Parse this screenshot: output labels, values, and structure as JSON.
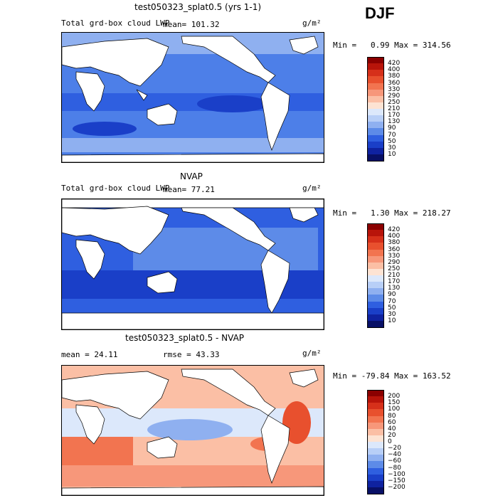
{
  "season": "DJF",
  "panels": [
    {
      "title": "test050323_splat0.5 (yrs 1-1)",
      "left_label": "Total grd-box cloud LWP",
      "mean_text": "mean=  101.32",
      "units": "g/m²",
      "minmax": "Min =   0.99 Max = 314.56",
      "colorbar_labels": [
        "420",
        "400",
        "380",
        "360",
        "330",
        "290",
        "250",
        "210",
        "170",
        "130",
        "90",
        "70",
        "50",
        "30",
        "10"
      ],
      "colorbar_colors": [
        "#8b0000",
        "#b8140a",
        "#d6301a",
        "#e8502e",
        "#f27450",
        "#f7977a",
        "#fbbfa5",
        "#fde3d3",
        "#dce8fb",
        "#b8cff7",
        "#8fb0f0",
        "#5d8be8",
        "#2f5fe0",
        "#1a3fc8",
        "#0f22a0",
        "#081066"
      ]
    },
    {
      "title": "NVAP",
      "left_label": "Total grd-box cloud LWP",
      "mean_text": "mean=   77.21",
      "units": "g/m²",
      "minmax": "Min =   1.30 Max = 218.27",
      "colorbar_labels": [
        "420",
        "400",
        "380",
        "360",
        "330",
        "290",
        "250",
        "210",
        "170",
        "130",
        "90",
        "70",
        "50",
        "30",
        "10"
      ],
      "colorbar_colors": [
        "#8b0000",
        "#b8140a",
        "#d6301a",
        "#e8502e",
        "#f27450",
        "#f7977a",
        "#fbbfa5",
        "#fde3d3",
        "#dce8fb",
        "#b8cff7",
        "#8fb0f0",
        "#5d8be8",
        "#2f5fe0",
        "#1a3fc8",
        "#0f22a0",
        "#081066"
      ]
    },
    {
      "title": "test050323_splat0.5 - NVAP",
      "mean_text": "mean =   24.11",
      "rmse_text": "rmse =   43.33",
      "units": "g/m²",
      "minmax": "Min = -79.84 Max = 163.52",
      "colorbar_labels": [
        "200",
        "150",
        "100",
        "80",
        "60",
        "40",
        "20",
        "0",
        "−20",
        "−40",
        "−60",
        "−80",
        "−100",
        "−150",
        "−200"
      ],
      "colorbar_colors": [
        "#8b0000",
        "#b8140a",
        "#d6301a",
        "#e8502e",
        "#f27450",
        "#f7977a",
        "#fbbfa5",
        "#fde3d3",
        "#dce8fb",
        "#b8cff7",
        "#8fb0f0",
        "#5d8be8",
        "#2f5fe0",
        "#1a3fc8",
        "#0f22a0",
        "#081066"
      ]
    }
  ]
}
